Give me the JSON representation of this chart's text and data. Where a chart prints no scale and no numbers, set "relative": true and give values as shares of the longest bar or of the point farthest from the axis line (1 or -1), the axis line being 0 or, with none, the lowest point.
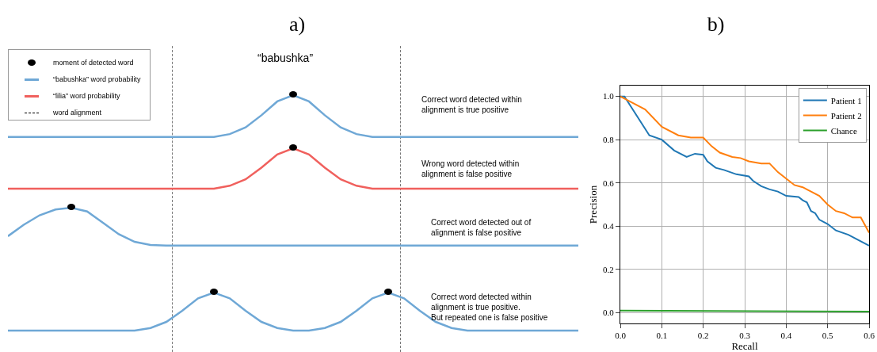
{
  "chart_data": [
    {
      "type": "line",
      "title": "a)",
      "relative": true,
      "legend": "top left",
      "categories": [
        null,
        null,
        null,
        null,
        null,
        null,
        null,
        null,
        null,
        null,
        null,
        null,
        null,
        null,
        null,
        null,
        null,
        null,
        null,
        null,
        null,
        null,
        null,
        null,
        null,
        null,
        null,
        null,
        null,
        null,
        null,
        null,
        null,
        null,
        null,
        null,
        null
      ],
      "series": [
        {
          "name": "“babushka” word probability",
          "color": "#6fa8d6",
          "values": [
            0,
            0,
            0,
            0,
            0,
            0,
            0,
            0,
            0,
            0,
            0,
            0,
            0,
            0,
            0.07,
            0.23,
            0.52,
            0.85,
            1,
            0.85,
            0.52,
            0.23,
            0.07,
            0,
            0,
            0,
            0,
            0,
            0,
            0,
            0,
            0,
            0,
            0,
            0,
            0,
            0
          ]
        }
      ],
      "annotations": [
        "“babushka”",
        "Correct word detected within\nalignment is true positive",
        "moment of detected word",
        "word alignment"
      ]
    },
    {
      "type": "line",
      "relative": true,
      "categories": [
        null,
        null,
        null,
        null,
        null,
        null,
        null,
        null,
        null,
        null,
        null,
        null,
        null,
        null,
        null,
        null,
        null,
        null,
        null,
        null,
        null,
        null,
        null,
        null,
        null,
        null,
        null,
        null,
        null,
        null,
        null,
        null,
        null,
        null,
        null,
        null,
        null
      ],
      "series": [
        {
          "name": "“lilia” word probability",
          "color": "#f0605d",
          "values": [
            0,
            0,
            0,
            0,
            0,
            0,
            0,
            0,
            0,
            0,
            0,
            0,
            0,
            0,
            0.07,
            0.23,
            0.52,
            0.85,
            1,
            0.85,
            0.52,
            0.23,
            0.07,
            0,
            0,
            0,
            0,
            0,
            0,
            0,
            0,
            0,
            0,
            0,
            0,
            0,
            0
          ]
        }
      ],
      "annotations": [
        "Wrong word detected within\nalignment is false positive"
      ]
    },
    {
      "type": "line",
      "relative": true,
      "categories": [
        null,
        null,
        null,
        null,
        null,
        null,
        null,
        null,
        null,
        null,
        null,
        null,
        null,
        null,
        null,
        null,
        null,
        null,
        null,
        null,
        null,
        null,
        null,
        null,
        null,
        null,
        null,
        null,
        null,
        null,
        null,
        null,
        null,
        null,
        null,
        null,
        null
      ],
      "series": [
        {
          "color": "#6fa8d6",
          "values": [
            0.25,
            0.55,
            0.8,
            0.95,
            1,
            0.9,
            0.6,
            0.3,
            0.1,
            0.02,
            0,
            0,
            0,
            0,
            0,
            0,
            0,
            0,
            0,
            0,
            0,
            0,
            0,
            0,
            0,
            0,
            0,
            0,
            0,
            0,
            0,
            0,
            0,
            0,
            0,
            0,
            0
          ]
        }
      ],
      "annotations": [
        "Correct word detected out of\nalignment is false positive"
      ]
    },
    {
      "type": "line",
      "relative": true,
      "categories": [
        null,
        null,
        null,
        null,
        null,
        null,
        null,
        null,
        null,
        null,
        null,
        null,
        null,
        null,
        null,
        null,
        null,
        null,
        null,
        null,
        null,
        null,
        null,
        null,
        null,
        null,
        null,
        null,
        null,
        null,
        null,
        null,
        null,
        null,
        null,
        null,
        null
      ],
      "series": [
        {
          "color": "#6fa8d6",
          "values": [
            0,
            0,
            0,
            0,
            0,
            0,
            0,
            0,
            0,
            0.07,
            0.23,
            0.52,
            0.85,
            1,
            0.85,
            0.52,
            0.23,
            0.07,
            0,
            0,
            0.07,
            0.23,
            0.52,
            0.85,
            1,
            0.85,
            0.52,
            0.23,
            0.07,
            0,
            0,
            0,
            0,
            0,
            0,
            0,
            0
          ]
        }
      ],
      "annotations": [
        "Correct word detected within\nalignment is true positive.\nBut repeated one is false positive"
      ]
    },
    {
      "type": "line",
      "title": "b)",
      "xlabel": "Recall",
      "ylabel": "Precision",
      "grid": true,
      "legend": "top right",
      "xlim": [
        0,
        0.6
      ],
      "ylim": [
        -0.05,
        1.05
      ],
      "xticks": [
        {
          "value": 0,
          "label": "0.0"
        },
        0.1,
        0.2,
        0.3,
        0.4,
        0.5,
        0.6
      ],
      "yticks": [
        {
          "value": 0,
          "label": "0.0"
        },
        0.2,
        0.4,
        0.6,
        0.8,
        {
          "value": 1,
          "label": "1.0"
        }
      ],
      "series": [
        {
          "name": "Patient 1",
          "color": "#1f77b4",
          "x": [
            0,
            0.01,
            0.07,
            0.1,
            0.13,
            0.16,
            0.18,
            0.2,
            0.21,
            0.23,
            0.25,
            0.28,
            0.31,
            0.32,
            0.34,
            0.36,
            0.38,
            0.4,
            0.43,
            0.44,
            0.45,
            0.46,
            0.47,
            0.48,
            0.5,
            0.52,
            0.55,
            0.58,
            0.6
          ],
          "values": [
            1.0,
            1.0,
            0.82,
            0.8,
            0.75,
            0.72,
            0.735,
            0.73,
            0.7,
            0.67,
            0.66,
            0.64,
            0.63,
            0.61,
            0.585,
            0.57,
            0.56,
            0.54,
            0.535,
            0.52,
            0.51,
            0.47,
            0.46,
            0.43,
            0.41,
            0.38,
            0.36,
            0.33,
            0.31
          ]
        },
        {
          "name": "Patient 2",
          "color": "#ff7f0e",
          "x": [
            0,
            0.01,
            0.06,
            0.1,
            0.14,
            0.17,
            0.2,
            0.22,
            0.24,
            0.27,
            0.29,
            0.31,
            0.34,
            0.36,
            0.38,
            0.4,
            0.42,
            0.44,
            0.46,
            0.48,
            0.5,
            0.52,
            0.54,
            0.56,
            0.58,
            0.6
          ],
          "values": [
            1.0,
            0.99,
            0.94,
            0.86,
            0.82,
            0.81,
            0.81,
            0.77,
            0.74,
            0.72,
            0.715,
            0.7,
            0.69,
            0.69,
            0.65,
            0.62,
            0.59,
            0.58,
            0.56,
            0.54,
            0.5,
            0.47,
            0.46,
            0.44,
            0.44,
            0.37
          ]
        },
        {
          "name": "Chance",
          "color": "#2ca02c",
          "x": [
            0,
            0.6
          ],
          "values": [
            0.01,
            0.005
          ]
        }
      ]
    }
  ]
}
